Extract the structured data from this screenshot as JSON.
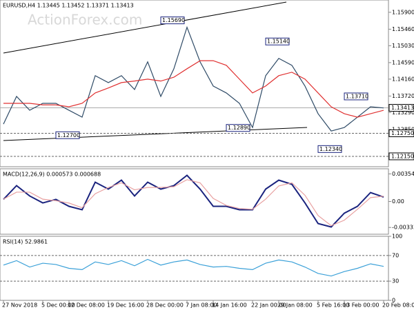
{
  "chart_data": [
    {
      "type": "line",
      "title": "EURUSD,H4  1.13445 1.13452 1.13371 1.13413",
      "watermark": "ActionForex.com",
      "ylim": [
        1.1188,
        1.1622
      ],
      "yticks": [
        {
          "value": 1.159,
          "label": "1.15900"
        },
        {
          "value": 1.1546,
          "label": "1.15460"
        },
        {
          "value": 1.1503,
          "label": "1.15030"
        },
        {
          "value": 1.1459,
          "label": "1.14590"
        },
        {
          "value": 1.1416,
          "label": "1.14160"
        },
        {
          "value": 1.1372,
          "label": "1.13720"
        },
        {
          "value": 1.1329,
          "label": "1.13290"
        },
        {
          "value": 1.1285,
          "label": "1.12850"
        }
      ],
      "levels": [
        {
          "value": 1.1275,
          "label": "1.12750"
        },
        {
          "value": 1.1215,
          "label": "1.12150"
        }
      ],
      "current": {
        "value": 1.13413,
        "label": "1.13413"
      },
      "annotations": [
        {
          "x": 12,
          "value": 1.1569,
          "label": "1.15690"
        },
        {
          "x": 20,
          "value": 1.1514,
          "label": "1.15140"
        },
        {
          "x": 26,
          "value": 1.1371,
          "label": "1.13710"
        },
        {
          "x": 17,
          "value": 1.1289,
          "label": "1.12890"
        },
        {
          "x": 4,
          "value": 1.127,
          "label": "1.12700"
        },
        {
          "x": 24,
          "value": 1.1234,
          "label": "1.12340"
        }
      ],
      "series": [
        {
          "color": "#2e4a66",
          "values": [
            1.1299,
            1.1371,
            1.1335,
            1.1353,
            1.1353,
            1.1335,
            1.1317,
            1.1425,
            1.1407,
            1.1425,
            1.1389,
            1.1461,
            1.1371,
            1.1443,
            1.1551,
            1.1461,
            1.1398,
            1.138,
            1.1353,
            1.129,
            1.1425,
            1.147,
            1.1452,
            1.1398,
            1.1326,
            1.1281,
            1.129,
            1.1317,
            1.1344,
            1.1341
          ]
        },
        {
          "color": "#e03030",
          "values": [
            1.1353,
            1.1353,
            1.1353,
            1.1349,
            1.1349,
            1.1344,
            1.1353,
            1.138,
            1.1393,
            1.1407,
            1.1411,
            1.1416,
            1.1411,
            1.1421,
            1.1443,
            1.1464,
            1.1464,
            1.1452,
            1.1416,
            1.138,
            1.1398,
            1.1425,
            1.1434,
            1.1416,
            1.138,
            1.1344,
            1.1326,
            1.1317,
            1.1326,
            1.1335
          ]
        }
      ]
    },
    {
      "type": "line",
      "title": "MACD(12,26,9) 0.000573 0.000688",
      "ylim": [
        -0.0042,
        0.0042
      ],
      "yticks": [
        0.003544,
        {
          "value": 0,
          "label": "0.00"
        },
        -0.003331
      ],
      "series": [
        {
          "color": "#1a237e",
          "values": [
            0.00027,
            0.00204,
            0.00071,
            -0.00018,
            0.00027,
            -0.00062,
            -0.00106,
            0.00248,
            0.00159,
            0.00274,
            0.00071,
            0.00248,
            0.00159,
            0.00204,
            0.00336,
            0.00159,
            -0.00062,
            -0.00062,
            -0.00106,
            -0.00106,
            0.00159,
            0.00274,
            0.00221,
            -0.00018,
            -0.00283,
            -0.00327,
            -0.0015,
            -0.00062,
            0.00115,
            0.000573
          ]
        },
        {
          "color": "#e8a0a0",
          "values": [
            0.0003,
            0.0012,
            0.0012,
            0.0003,
            0.0001,
            -0.0002,
            -0.0008,
            0.001,
            0.0018,
            0.0024,
            0.0015,
            0.0018,
            0.0018,
            0.0019,
            0.0028,
            0.0024,
            0.0004,
            -0.0005,
            -0.0009,
            -0.001,
            0.0003,
            0.002,
            0.0024,
            0.0008,
            -0.0018,
            -0.0031,
            -0.0024,
            -0.001,
            0.0005,
            0.000688
          ]
        }
      ]
    },
    {
      "type": "line",
      "title": "RSI(14) 52.9861",
      "ylim": [
        0,
        100
      ],
      "yticks": [
        100,
        70,
        30,
        0
      ],
      "levels": [
        70,
        30
      ],
      "series": [
        {
          "color": "#3aa0d8",
          "values": [
            55,
            62,
            52,
            58,
            56,
            50,
            48,
            60,
            56,
            62,
            54,
            64,
            55,
            60,
            63,
            56,
            52,
            53,
            50,
            48,
            58,
            63,
            60,
            52,
            42,
            38,
            45,
            50,
            57,
            52.9861
          ]
        }
      ],
      "xticks": [
        {
          "value": 0,
          "label": "27 Nov 2018"
        },
        {
          "value": 3,
          "label": "5 Dec 00:00"
        },
        {
          "value": 5,
          "label": "12 Dec 08:00"
        },
        {
          "value": 8,
          "label": "19 Dec 16:00"
        },
        {
          "value": 11,
          "label": "28 Dec 00:00"
        },
        {
          "value": 14,
          "label": "7 Jan 08:00"
        },
        {
          "value": 16,
          "label": "14 Jan 16:00"
        },
        {
          "value": 19,
          "label": "22 Jan 00:00"
        },
        {
          "value": 21,
          "label": "29 Jan 08:00"
        },
        {
          "value": 24,
          "label": "5 Feb 16:00"
        },
        {
          "value": 26,
          "label": "13 Feb 00:00"
        },
        {
          "value": 29,
          "label": "20 Feb 08:00"
        }
      ]
    }
  ]
}
